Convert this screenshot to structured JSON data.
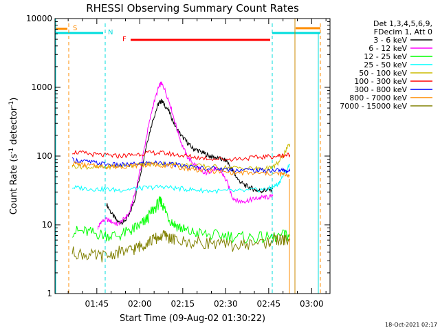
{
  "chart_data": {
    "type": "line",
    "title": "RHESSI Observing Summary Count Rates",
    "xlabel": "Start Time (09-Aug-02 01:30:22)",
    "ylabel_main": "Count Rate (s",
    "ylabel_sup1": "-1",
    "ylabel_mid": " detector",
    "ylabel_sup2": "-1",
    "ylabel_end": ")",
    "yscale": "log",
    "xlim_min": [
      0,
      96
    ],
    "ylim": [
      1,
      10000
    ],
    "x_ticks": [
      {
        "min": 14.6,
        "label": "01:45"
      },
      {
        "min": 29.6,
        "label": "02:00"
      },
      {
        "min": 44.6,
        "label": "02:15"
      },
      {
        "min": 59.6,
        "label": "02:30"
      },
      {
        "min": 74.6,
        "label": "02:45"
      },
      {
        "min": 89.6,
        "label": "03:00"
      }
    ],
    "y_ticks": [
      {
        "v": 1,
        "label": "1"
      },
      {
        "v": 10,
        "label": "10"
      },
      {
        "v": 100,
        "label": "100"
      },
      {
        "v": 1000,
        "label": "1000"
      },
      {
        "v": 10000,
        "label": "10000"
      }
    ],
    "legend_header": [
      "Det 1,3,4,5,6,9,",
      "FDecim 1, Att 0"
    ],
    "series": [
      {
        "name": "3 - 6 keV",
        "color": "#000000",
        "points": [
          [
            18,
            20
          ],
          [
            20,
            14
          ],
          [
            22,
            11
          ],
          [
            24,
            11
          ],
          [
            26,
            14
          ],
          [
            28,
            25
          ],
          [
            30,
            60
          ],
          [
            32,
            150
          ],
          [
            34,
            320
          ],
          [
            36,
            560
          ],
          [
            37,
            640
          ],
          [
            38,
            580
          ],
          [
            40,
            430
          ],
          [
            42,
            270
          ],
          [
            44,
            200
          ],
          [
            46,
            160
          ],
          [
            48,
            130
          ],
          [
            50,
            120
          ],
          [
            52,
            110
          ],
          [
            54,
            100
          ],
          [
            56,
            95
          ],
          [
            58,
            90
          ],
          [
            60,
            85
          ],
          [
            62,
            60
          ],
          [
            64,
            45
          ],
          [
            66,
            38
          ],
          [
            68,
            35
          ],
          [
            70,
            32
          ],
          [
            72,
            31
          ],
          [
            74,
            32
          ],
          [
            76,
            33
          ]
        ]
      },
      {
        "name": "6 - 12 keV",
        "color": "#ff00ff",
        "points": [
          [
            15,
            9
          ],
          [
            16,
            11
          ],
          [
            18,
            12
          ],
          [
            20,
            11
          ],
          [
            22,
            10
          ],
          [
            24,
            12
          ],
          [
            26,
            15
          ],
          [
            28,
            30
          ],
          [
            30,
            70
          ],
          [
            32,
            200
          ],
          [
            34,
            500
          ],
          [
            36,
            950
          ],
          [
            37,
            1150
          ],
          [
            38,
            1000
          ],
          [
            40,
            600
          ],
          [
            42,
            300
          ],
          [
            44,
            160
          ],
          [
            46,
            100
          ],
          [
            48,
            80
          ],
          [
            50,
            68
          ],
          [
            52,
            55
          ],
          [
            54,
            60
          ],
          [
            56,
            65
          ],
          [
            58,
            60
          ],
          [
            60,
            42
          ],
          [
            62,
            25
          ],
          [
            64,
            22
          ],
          [
            66,
            22
          ],
          [
            68,
            23
          ],
          [
            70,
            24
          ],
          [
            72,
            25
          ],
          [
            74,
            25
          ],
          [
            76,
            26
          ]
        ]
      },
      {
        "name": "12 - 25 keV",
        "color": "#00ff00",
        "points": [
          [
            6,
            8
          ],
          [
            10,
            8
          ],
          [
            14,
            7.5
          ],
          [
            18,
            7
          ],
          [
            22,
            7
          ],
          [
            26,
            8
          ],
          [
            28,
            9
          ],
          [
            30,
            10
          ],
          [
            32,
            12
          ],
          [
            34,
            16
          ],
          [
            36,
            20
          ],
          [
            37,
            22
          ],
          [
            38,
            18
          ],
          [
            40,
            12
          ],
          [
            42,
            10
          ],
          [
            44,
            9
          ],
          [
            46,
            8
          ],
          [
            50,
            7.5
          ],
          [
            55,
            7
          ],
          [
            60,
            7
          ],
          [
            65,
            6.5
          ],
          [
            70,
            6.5
          ],
          [
            75,
            6.5
          ],
          [
            80,
            7
          ],
          [
            82,
            7
          ]
        ]
      },
      {
        "name": "25 - 50 keV",
        "color": "#00ffff",
        "points": [
          [
            6,
            35
          ],
          [
            10,
            34
          ],
          [
            14,
            33
          ],
          [
            18,
            33
          ],
          [
            22,
            32
          ],
          [
            26,
            33
          ],
          [
            30,
            34
          ],
          [
            34,
            35
          ],
          [
            38,
            36
          ],
          [
            42,
            34
          ],
          [
            46,
            33
          ],
          [
            50,
            32
          ],
          [
            55,
            31
          ],
          [
            60,
            31
          ],
          [
            65,
            31
          ],
          [
            70,
            32
          ],
          [
            74,
            33
          ],
          [
            76,
            35
          ],
          [
            78,
            40
          ],
          [
            80,
            55
          ],
          [
            82,
            75
          ]
        ]
      },
      {
        "name": "50 - 100 keV",
        "color": "#ccbb00",
        "points": [
          [
            6,
            72
          ],
          [
            10,
            70
          ],
          [
            14,
            68
          ],
          [
            18,
            70
          ],
          [
            22,
            72
          ],
          [
            26,
            74
          ],
          [
            30,
            75
          ],
          [
            34,
            77
          ],
          [
            38,
            78
          ],
          [
            42,
            76
          ],
          [
            46,
            74
          ],
          [
            50,
            72
          ],
          [
            55,
            70
          ],
          [
            60,
            68
          ],
          [
            65,
            67
          ],
          [
            70,
            66
          ],
          [
            74,
            66
          ],
          [
            76,
            68
          ],
          [
            78,
            80
          ],
          [
            80,
            110
          ],
          [
            82,
            150
          ]
        ]
      },
      {
        "name": "100 - 300 keV",
        "color": "#ff0000",
        "points": [
          [
            6,
            115
          ],
          [
            10,
            110
          ],
          [
            14,
            105
          ],
          [
            18,
            102
          ],
          [
            22,
            100
          ],
          [
            26,
            103
          ],
          [
            30,
            108
          ],
          [
            34,
            112
          ],
          [
            38,
            110
          ],
          [
            42,
            105
          ],
          [
            46,
            100
          ],
          [
            50,
            95
          ],
          [
            55,
            92
          ],
          [
            60,
            90
          ],
          [
            65,
            92
          ],
          [
            70,
            95
          ],
          [
            74,
            98
          ],
          [
            78,
            100
          ],
          [
            80,
            102
          ],
          [
            82,
            105
          ]
        ]
      },
      {
        "name": "300 - 800 keV",
        "color": "#0000ff",
        "points": [
          [
            6,
            88
          ],
          [
            10,
            84
          ],
          [
            14,
            80
          ],
          [
            18,
            76
          ],
          [
            22,
            74
          ],
          [
            26,
            75
          ],
          [
            30,
            78
          ],
          [
            34,
            80
          ],
          [
            38,
            79
          ],
          [
            42,
            74
          ],
          [
            46,
            70
          ],
          [
            50,
            68
          ],
          [
            55,
            66
          ],
          [
            60,
            64
          ],
          [
            65,
            63
          ],
          [
            70,
            62
          ],
          [
            74,
            62
          ],
          [
            78,
            62
          ],
          [
            80,
            62
          ],
          [
            82,
            60
          ]
        ]
      },
      {
        "name": "800 - 7000 keV",
        "color": "#ff8c00",
        "points": [
          [
            6,
            78
          ],
          [
            10,
            74
          ],
          [
            14,
            72
          ],
          [
            18,
            70
          ],
          [
            22,
            70
          ],
          [
            26,
            72
          ],
          [
            30,
            74
          ],
          [
            34,
            75
          ],
          [
            38,
            74
          ],
          [
            42,
            70
          ],
          [
            46,
            66
          ],
          [
            50,
            63
          ],
          [
            55,
            60
          ],
          [
            60,
            58
          ],
          [
            65,
            57
          ],
          [
            70,
            56
          ],
          [
            74,
            56
          ],
          [
            78,
            55
          ],
          [
            80,
            54
          ],
          [
            82,
            53
          ]
        ]
      },
      {
        "name": "7000 - 15000 keV",
        "color": "#808000",
        "points": [
          [
            6,
            4
          ],
          [
            10,
            3.7
          ],
          [
            14,
            3.5
          ],
          [
            18,
            3.5
          ],
          [
            22,
            4
          ],
          [
            26,
            4.2
          ],
          [
            28,
            4.5
          ],
          [
            30,
            5
          ],
          [
            32,
            5.5
          ],
          [
            34,
            6
          ],
          [
            36,
            6.5
          ],
          [
            38,
            7
          ],
          [
            40,
            6.5
          ],
          [
            42,
            6
          ],
          [
            46,
            5.5
          ],
          [
            50,
            5.5
          ],
          [
            55,
            5.5
          ],
          [
            60,
            5
          ],
          [
            65,
            5
          ],
          [
            70,
            5.5
          ],
          [
            74,
            5.5
          ],
          [
            76,
            6
          ],
          [
            78,
            6
          ],
          [
            80,
            6
          ],
          [
            82,
            6
          ]
        ]
      }
    ],
    "flags": [
      {
        "label": "S",
        "color": "#ff8c00"
      },
      {
        "label": "N",
        "color": "#00dddd"
      },
      {
        "label": "F",
        "color": "#ff0000"
      }
    ],
    "timestamp": "18-Oct-2021 02:17"
  }
}
